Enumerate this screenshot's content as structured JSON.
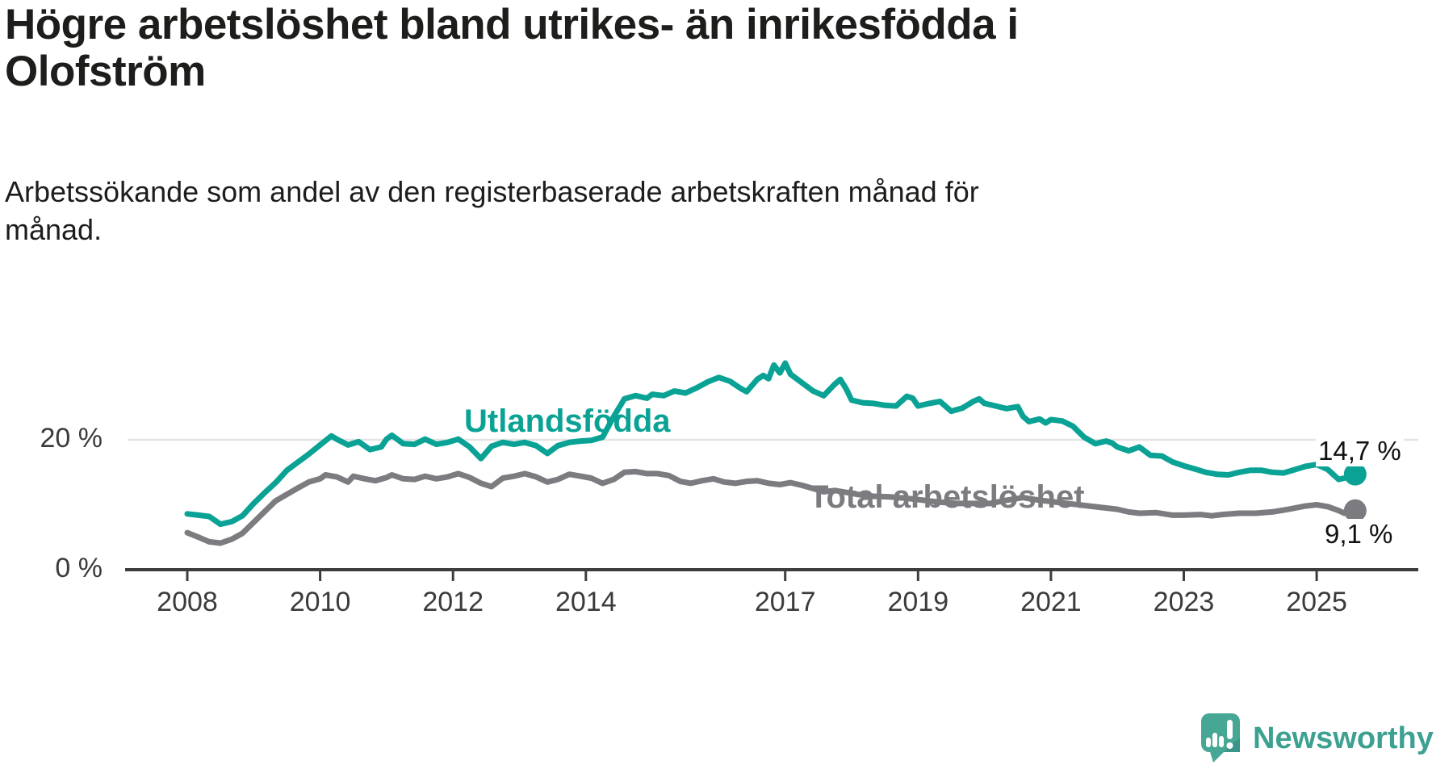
{
  "header": {
    "title": "Högre arbetslöshet bland utrikes- än inrikesfödda i\nOlofström",
    "subtitle": "Arbetssökande som andel av den registerbaserade arbetskraften månad för\nmånad."
  },
  "footer": {
    "logo_text": "Newsworthy",
    "logo_icon": "speech-bubble-bar-chart"
  },
  "colors": {
    "foreign_born_line": "#0aa295",
    "total_line": "#7b7b80",
    "axis": "#3d3d3d",
    "gridline": "#e4e4e4",
    "title_text": "#1d1d1b",
    "logo_teal": "#47a795"
  },
  "chart_data": {
    "type": "line",
    "unit": "%",
    "title": "Högre arbetslöshet bland utrikes- än inrikesfödda i Olofström",
    "subtitle": "Arbetssökande som andel av den registerbaserade arbetskraften månad för månad.",
    "grid": "horizontal-20-only",
    "legend_position": "inline-labels",
    "x_axis": {
      "ticks": [
        2008,
        2010,
        2012,
        2014,
        2017,
        2019,
        2021,
        2023,
        2025
      ],
      "range": [
        2007.1,
        2026.5
      ]
    },
    "y_axis": {
      "ticks": [
        {
          "value": 0,
          "label": "0 %"
        },
        {
          "value": 20,
          "label": "20 %"
        }
      ],
      "range": [
        0,
        41.7
      ]
    },
    "series": [
      {
        "name": "Utlandsfödda",
        "color": "#0aa295",
        "end_label": "14,7 %",
        "last_value": 14.7,
        "points": [
          [
            2008.0,
            8.6
          ],
          [
            2008.17,
            8.4
          ],
          [
            2008.33,
            8.2
          ],
          [
            2008.5,
            7.0
          ],
          [
            2008.67,
            7.4
          ],
          [
            2008.83,
            8.3
          ],
          [
            2009.0,
            10.2
          ],
          [
            2009.17,
            11.9
          ],
          [
            2009.33,
            13.4
          ],
          [
            2009.5,
            15.3
          ],
          [
            2009.67,
            16.6
          ],
          [
            2009.83,
            17.8
          ],
          [
            2010.0,
            19.2
          ],
          [
            2010.17,
            20.6
          ],
          [
            2010.25,
            20.1
          ],
          [
            2010.42,
            19.2
          ],
          [
            2010.58,
            19.7
          ],
          [
            2010.75,
            18.5
          ],
          [
            2010.92,
            18.9
          ],
          [
            2011.0,
            20.1
          ],
          [
            2011.08,
            20.7
          ],
          [
            2011.25,
            19.4
          ],
          [
            2011.42,
            19.3
          ],
          [
            2011.58,
            20.1
          ],
          [
            2011.75,
            19.3
          ],
          [
            2011.92,
            19.6
          ],
          [
            2012.08,
            20.1
          ],
          [
            2012.25,
            18.9
          ],
          [
            2012.42,
            17.1
          ],
          [
            2012.58,
            19.0
          ],
          [
            2012.75,
            19.6
          ],
          [
            2012.92,
            19.3
          ],
          [
            2013.08,
            19.6
          ],
          [
            2013.25,
            19.1
          ],
          [
            2013.42,
            17.9
          ],
          [
            2013.58,
            19.1
          ],
          [
            2013.75,
            19.6
          ],
          [
            2013.92,
            19.8
          ],
          [
            2014.08,
            19.9
          ],
          [
            2014.25,
            20.4
          ],
          [
            2014.42,
            23.6
          ],
          [
            2014.58,
            26.3
          ],
          [
            2014.75,
            26.8
          ],
          [
            2014.92,
            26.4
          ],
          [
            2015.0,
            27.0
          ],
          [
            2015.17,
            26.8
          ],
          [
            2015.33,
            27.5
          ],
          [
            2015.5,
            27.2
          ],
          [
            2015.67,
            28.0
          ],
          [
            2015.83,
            28.9
          ],
          [
            2016.0,
            29.6
          ],
          [
            2016.17,
            29.0
          ],
          [
            2016.33,
            27.9
          ],
          [
            2016.42,
            27.4
          ],
          [
            2016.58,
            29.3
          ],
          [
            2016.67,
            29.9
          ],
          [
            2016.75,
            29.4
          ],
          [
            2016.83,
            31.5
          ],
          [
            2016.92,
            30.3
          ],
          [
            2017.0,
            31.8
          ],
          [
            2017.08,
            30.1
          ],
          [
            2017.25,
            28.8
          ],
          [
            2017.42,
            27.5
          ],
          [
            2017.58,
            26.8
          ],
          [
            2017.75,
            28.6
          ],
          [
            2017.83,
            29.3
          ],
          [
            2017.92,
            27.8
          ],
          [
            2018.0,
            26.1
          ],
          [
            2018.17,
            25.7
          ],
          [
            2018.33,
            25.6
          ],
          [
            2018.5,
            25.3
          ],
          [
            2018.67,
            25.2
          ],
          [
            2018.83,
            26.7
          ],
          [
            2018.92,
            26.4
          ],
          [
            2019.0,
            25.2
          ],
          [
            2019.17,
            25.6
          ],
          [
            2019.33,
            25.9
          ],
          [
            2019.5,
            24.4
          ],
          [
            2019.67,
            24.9
          ],
          [
            2019.83,
            25.9
          ],
          [
            2019.92,
            26.3
          ],
          [
            2020.0,
            25.6
          ],
          [
            2020.17,
            25.2
          ],
          [
            2020.33,
            24.8
          ],
          [
            2020.5,
            25.1
          ],
          [
            2020.58,
            23.6
          ],
          [
            2020.67,
            22.8
          ],
          [
            2020.83,
            23.2
          ],
          [
            2020.92,
            22.6
          ],
          [
            2021.0,
            23.1
          ],
          [
            2021.17,
            22.9
          ],
          [
            2021.33,
            22.1
          ],
          [
            2021.5,
            20.4
          ],
          [
            2021.67,
            19.4
          ],
          [
            2021.83,
            19.8
          ],
          [
            2021.92,
            19.5
          ],
          [
            2022.0,
            18.9
          ],
          [
            2022.17,
            18.3
          ],
          [
            2022.33,
            18.9
          ],
          [
            2022.5,
            17.6
          ],
          [
            2022.67,
            17.5
          ],
          [
            2022.83,
            16.6
          ],
          [
            2023.0,
            16.0
          ],
          [
            2023.17,
            15.5
          ],
          [
            2023.33,
            15.0
          ],
          [
            2023.5,
            14.7
          ],
          [
            2023.67,
            14.6
          ],
          [
            2023.83,
            15.0
          ],
          [
            2024.0,
            15.3
          ],
          [
            2024.17,
            15.3
          ],
          [
            2024.33,
            15.0
          ],
          [
            2024.5,
            14.9
          ],
          [
            2024.67,
            15.4
          ],
          [
            2024.83,
            15.9
          ],
          [
            2025.0,
            16.2
          ],
          [
            2025.17,
            15.4
          ],
          [
            2025.33,
            13.9
          ],
          [
            2025.5,
            14.3
          ],
          [
            2025.58,
            14.7
          ]
        ]
      },
      {
        "name": "Total arbetslöshet",
        "color": "#7b7b80",
        "end_label": "9,1 %",
        "last_value": 9.1,
        "points": [
          [
            2008.0,
            5.7
          ],
          [
            2008.17,
            5.0
          ],
          [
            2008.33,
            4.3
          ],
          [
            2008.5,
            4.1
          ],
          [
            2008.67,
            4.7
          ],
          [
            2008.83,
            5.6
          ],
          [
            2009.0,
            7.3
          ],
          [
            2009.17,
            9.0
          ],
          [
            2009.33,
            10.6
          ],
          [
            2009.5,
            11.6
          ],
          [
            2009.67,
            12.6
          ],
          [
            2009.83,
            13.5
          ],
          [
            2010.0,
            14.0
          ],
          [
            2010.08,
            14.6
          ],
          [
            2010.25,
            14.3
          ],
          [
            2010.42,
            13.5
          ],
          [
            2010.5,
            14.4
          ],
          [
            2010.67,
            14.0
          ],
          [
            2010.83,
            13.7
          ],
          [
            2011.0,
            14.2
          ],
          [
            2011.08,
            14.6
          ],
          [
            2011.25,
            14.0
          ],
          [
            2011.42,
            13.9
          ],
          [
            2011.58,
            14.4
          ],
          [
            2011.75,
            14.0
          ],
          [
            2011.92,
            14.3
          ],
          [
            2012.08,
            14.8
          ],
          [
            2012.25,
            14.2
          ],
          [
            2012.42,
            13.3
          ],
          [
            2012.58,
            12.8
          ],
          [
            2012.75,
            14.1
          ],
          [
            2012.92,
            14.4
          ],
          [
            2013.08,
            14.8
          ],
          [
            2013.25,
            14.3
          ],
          [
            2013.42,
            13.5
          ],
          [
            2013.58,
            13.9
          ],
          [
            2013.75,
            14.7
          ],
          [
            2013.92,
            14.4
          ],
          [
            2014.08,
            14.1
          ],
          [
            2014.25,
            13.3
          ],
          [
            2014.42,
            13.9
          ],
          [
            2014.58,
            15.0
          ],
          [
            2014.75,
            15.1
          ],
          [
            2014.92,
            14.8
          ],
          [
            2015.08,
            14.8
          ],
          [
            2015.25,
            14.5
          ],
          [
            2015.42,
            13.6
          ],
          [
            2015.58,
            13.3
          ],
          [
            2015.75,
            13.7
          ],
          [
            2015.92,
            14.0
          ],
          [
            2016.08,
            13.5
          ],
          [
            2016.25,
            13.3
          ],
          [
            2016.42,
            13.6
          ],
          [
            2016.58,
            13.7
          ],
          [
            2016.75,
            13.3
          ],
          [
            2016.92,
            13.1
          ],
          [
            2017.08,
            13.4
          ],
          [
            2017.25,
            13.0
          ],
          [
            2017.42,
            12.5
          ],
          [
            2017.58,
            12.0
          ],
          [
            2017.75,
            12.2
          ],
          [
            2017.92,
            11.9
          ],
          [
            2018.08,
            11.6
          ],
          [
            2018.33,
            11.3
          ],
          [
            2018.58,
            11.2
          ],
          [
            2018.83,
            11.0
          ],
          [
            2019.08,
            10.7
          ],
          [
            2019.33,
            10.4
          ],
          [
            2019.58,
            10.2
          ],
          [
            2019.83,
            10.2
          ],
          [
            2020.08,
            10.2
          ],
          [
            2020.33,
            10.7
          ],
          [
            2020.58,
            11.1
          ],
          [
            2020.83,
            10.7
          ],
          [
            2021.08,
            10.4
          ],
          [
            2021.33,
            10.1
          ],
          [
            2021.58,
            9.8
          ],
          [
            2021.83,
            9.5
          ],
          [
            2022.0,
            9.3
          ],
          [
            2022.17,
            8.9
          ],
          [
            2022.33,
            8.7
          ],
          [
            2022.58,
            8.8
          ],
          [
            2022.83,
            8.4
          ],
          [
            2023.0,
            8.4
          ],
          [
            2023.25,
            8.5
          ],
          [
            2023.42,
            8.3
          ],
          [
            2023.58,
            8.5
          ],
          [
            2023.83,
            8.7
          ],
          [
            2024.08,
            8.7
          ],
          [
            2024.33,
            8.9
          ],
          [
            2024.58,
            9.3
          ],
          [
            2024.83,
            9.8
          ],
          [
            2025.0,
            10.0
          ],
          [
            2025.17,
            9.7
          ],
          [
            2025.33,
            9.1
          ],
          [
            2025.42,
            8.7
          ],
          [
            2025.58,
            9.1
          ]
        ]
      }
    ]
  }
}
